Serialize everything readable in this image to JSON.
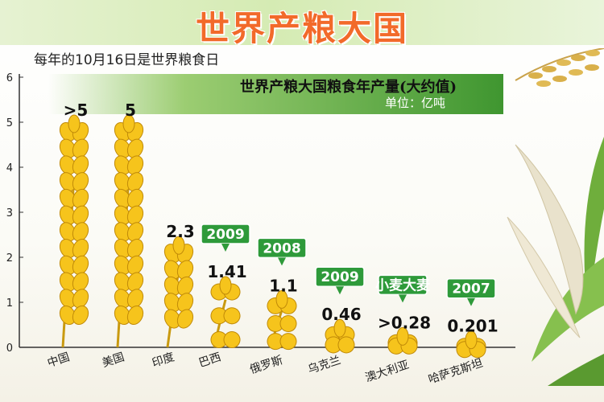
{
  "header": {
    "title": "世界产粮大国"
  },
  "subtitle": "每年的10月16日是世界粮食日",
  "banner": {
    "title": "世界产粮大国粮食年产量(大约值)",
    "unit": "单位：亿吨"
  },
  "colors": {
    "accent": "#f26a2a",
    "banner_green": "#3f9630",
    "wheat": "#f6c41c",
    "tag_green": "#2e9a3a"
  },
  "chart_data": {
    "type": "bar",
    "categories": [
      "中国",
      "美国",
      "印度",
      "巴西",
      "俄罗斯",
      "乌克兰",
      "澳大利亚",
      "哈萨克斯坦"
    ],
    "values": [
      5,
      5,
      2.3,
      1.41,
      1.1,
      0.46,
      0.28,
      0.201
    ],
    "value_labels": [
      ">5",
      "5",
      "2.3",
      "1.41",
      "1.1",
      "0.46",
      ">0.28",
      "0.201"
    ],
    "year_tags": [
      "",
      "",
      "",
      "2009",
      "2008",
      "2009",
      "小麦大麦",
      "2007"
    ],
    "ylim": [
      0,
      6
    ],
    "yticks": [
      "0",
      "1",
      "2",
      "3",
      "4",
      "5",
      "6"
    ],
    "grid": false
  }
}
